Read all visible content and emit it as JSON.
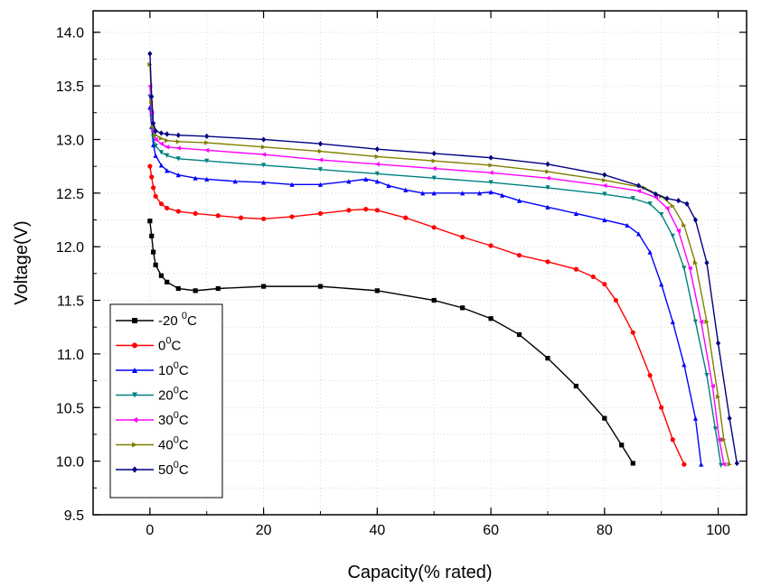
{
  "chart_data": {
    "type": "line",
    "title": "",
    "xlabel": "Capacity(% rated)",
    "ylabel": "Voltage(V)",
    "xlim": [
      -10,
      105
    ],
    "ylim": [
      9.5,
      14.2
    ],
    "xticks": [
      0,
      20,
      40,
      60,
      80,
      100
    ],
    "xtick_labels": [
      "0",
      "20",
      "40",
      "60",
      "80",
      "100"
    ],
    "yticks": [
      9.5,
      10.0,
      10.5,
      11.0,
      11.5,
      12.0,
      12.5,
      13.0,
      13.5,
      14.0
    ],
    "ytick_labels": [
      "9.5",
      "10.0",
      "10.5",
      "11.0",
      "11.5",
      "12.0",
      "12.5",
      "13.0",
      "13.5",
      "14.0"
    ],
    "grid": true,
    "legend_position": "bottom-left",
    "series": [
      {
        "name": "-20 °C",
        "label_base": "-20 ",
        "label_sup": "0",
        "label_unit": "C",
        "color": "#000000",
        "marker": "square",
        "x": [
          0,
          0.3,
          0.6,
          1,
          2,
          3,
          5,
          8,
          12,
          20,
          30,
          40,
          50,
          55,
          60,
          65,
          70,
          75,
          80,
          83,
          85
        ],
        "y": [
          12.24,
          12.1,
          11.95,
          11.83,
          11.73,
          11.67,
          11.61,
          11.59,
          11.61,
          11.63,
          11.63,
          11.59,
          11.5,
          11.43,
          11.33,
          11.18,
          10.96,
          10.7,
          10.4,
          10.15,
          9.98
        ]
      },
      {
        "name": "0 °C",
        "label_base": "0",
        "label_sup": "0",
        "label_unit": "C",
        "color": "#ff0000",
        "marker": "circle",
        "x": [
          0,
          0.3,
          0.6,
          1,
          2,
          3,
          5,
          8,
          12,
          16,
          20,
          25,
          30,
          35,
          38,
          40,
          45,
          50,
          55,
          60,
          65,
          70,
          75,
          78,
          80,
          82,
          85,
          88,
          90,
          92,
          94
        ],
        "y": [
          12.75,
          12.65,
          12.55,
          12.47,
          12.4,
          12.36,
          12.33,
          12.31,
          12.29,
          12.27,
          12.26,
          12.28,
          12.31,
          12.34,
          12.35,
          12.34,
          12.27,
          12.18,
          12.09,
          12.01,
          11.92,
          11.86,
          11.79,
          11.72,
          11.65,
          11.5,
          11.2,
          10.8,
          10.5,
          10.2,
          9.97
        ]
      },
      {
        "name": "10 °C",
        "label_base": "10",
        "label_sup": "0",
        "label_unit": "C",
        "color": "#0000ff",
        "marker": "triangle-up",
        "x": [
          0,
          0.3,
          0.6,
          1,
          2,
          3,
          5,
          8,
          10,
          15,
          20,
          25,
          30,
          35,
          38,
          40,
          42,
          45,
          48,
          50,
          55,
          58,
          60,
          62,
          65,
          70,
          75,
          80,
          84,
          86,
          88,
          90,
          92,
          94,
          96,
          97
        ],
        "y": [
          13.3,
          13.12,
          12.95,
          12.85,
          12.76,
          12.71,
          12.67,
          12.64,
          12.63,
          12.61,
          12.6,
          12.58,
          12.58,
          12.61,
          12.63,
          12.61,
          12.57,
          12.53,
          12.5,
          12.5,
          12.5,
          12.5,
          12.51,
          12.48,
          12.43,
          12.37,
          12.31,
          12.25,
          12.2,
          12.12,
          11.95,
          11.65,
          11.3,
          10.9,
          10.4,
          9.97
        ]
      },
      {
        "name": "20 °C",
        "label_base": "20",
        "label_sup": "0",
        "label_unit": "C",
        "color": "#008080",
        "marker": "triangle-down",
        "x": [
          0,
          0.3,
          0.6,
          1,
          2,
          3,
          5,
          10,
          20,
          30,
          40,
          50,
          60,
          70,
          80,
          85,
          88,
          90,
          92,
          94,
          96,
          98,
          99.5,
          100.5
        ],
        "y": [
          13.4,
          13.2,
          13.02,
          12.94,
          12.88,
          12.85,
          12.82,
          12.8,
          12.76,
          12.72,
          12.68,
          12.64,
          12.6,
          12.55,
          12.49,
          12.45,
          12.4,
          12.3,
          12.1,
          11.8,
          11.3,
          10.8,
          10.3,
          9.96
        ]
      },
      {
        "name": "30 °C",
        "label_base": "30",
        "label_sup": "0",
        "label_unit": "C",
        "color": "#ff00ff",
        "marker": "triangle-left",
        "x": [
          0,
          0.3,
          0.6,
          1,
          2,
          3,
          5,
          10,
          20,
          30,
          40,
          50,
          60,
          70,
          80,
          86,
          89,
          91,
          93,
          95,
          97,
          99,
          100.2,
          101
        ],
        "y": [
          13.5,
          13.25,
          13.08,
          13.0,
          12.96,
          12.93,
          12.92,
          12.9,
          12.86,
          12.81,
          12.77,
          12.73,
          12.69,
          12.64,
          12.57,
          12.52,
          12.46,
          12.36,
          12.15,
          11.8,
          11.3,
          10.7,
          10.2,
          9.97
        ]
      },
      {
        "name": "40 °C",
        "label_base": "40",
        "label_sup": "0",
        "label_unit": "C",
        "color": "#808000",
        "marker": "triangle-right",
        "x": [
          0,
          0.3,
          0.6,
          1,
          2,
          3,
          5,
          10,
          20,
          30,
          40,
          50,
          60,
          70,
          80,
          87,
          90,
          92,
          94,
          96,
          98,
          100,
          101,
          102
        ],
        "y": [
          13.7,
          13.35,
          13.12,
          13.04,
          13.01,
          12.99,
          12.98,
          12.97,
          12.93,
          12.89,
          12.84,
          12.8,
          12.76,
          12.7,
          12.62,
          12.55,
          12.47,
          12.38,
          12.2,
          11.85,
          11.3,
          10.6,
          10.2,
          9.97
        ]
      },
      {
        "name": "50 °C",
        "label_base": "50",
        "label_sup": "0",
        "label_unit": "C",
        "color": "#000080",
        "marker": "diamond",
        "x": [
          0,
          0.3,
          0.6,
          1,
          2,
          3,
          5,
          10,
          20,
          30,
          40,
          50,
          60,
          70,
          80,
          86,
          89,
          91,
          93,
          94.5,
          96,
          98,
          100,
          102,
          103.3
        ],
        "y": [
          13.8,
          13.4,
          13.15,
          13.08,
          13.06,
          13.05,
          13.04,
          13.03,
          13.0,
          12.96,
          12.91,
          12.87,
          12.83,
          12.77,
          12.67,
          12.57,
          12.49,
          12.45,
          12.43,
          12.4,
          12.25,
          11.85,
          11.1,
          10.4,
          9.98
        ]
      }
    ]
  }
}
